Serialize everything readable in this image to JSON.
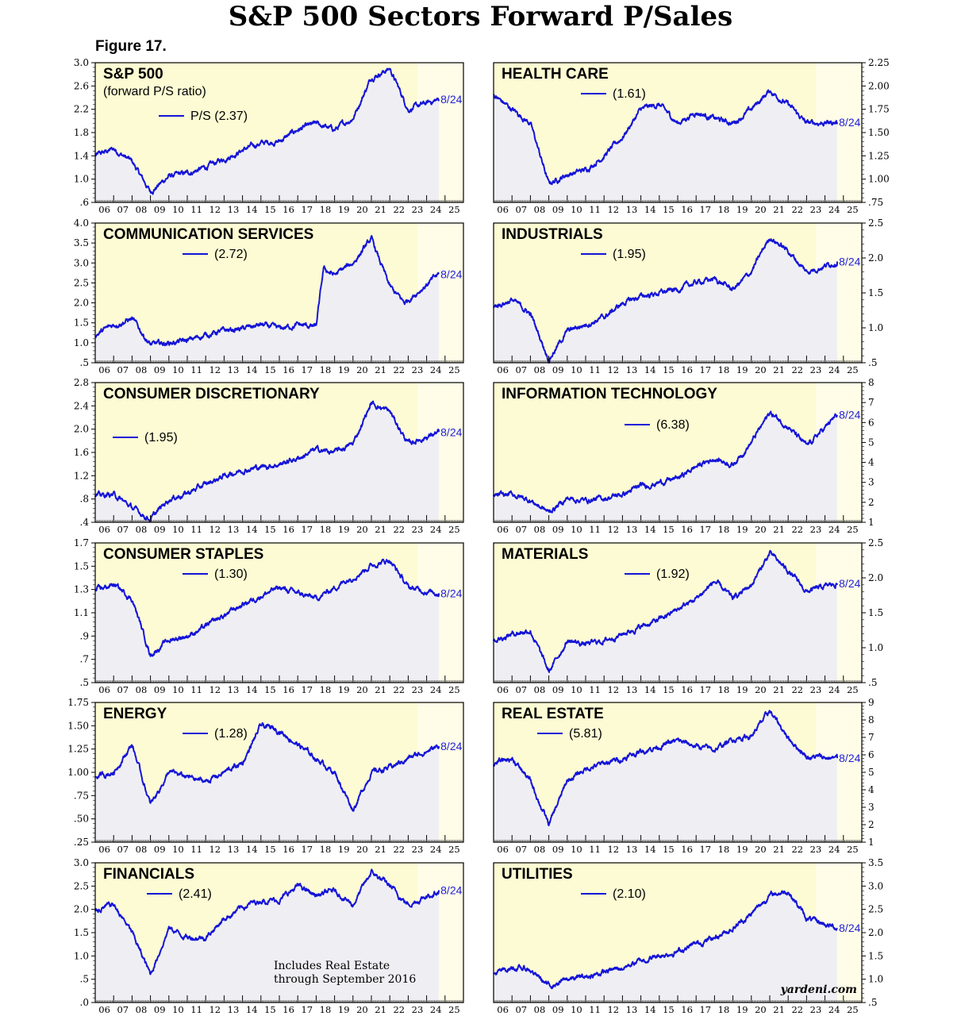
{
  "title": "S&P 500 Sectors Forward P/Sales",
  "figure_label": "Figure 17.",
  "note_lines": [
    "Includes Real Estate",
    "through September 2016"
  ],
  "source": "yardeni.com",
  "colors": {
    "line": "#1414d8",
    "panel_bg": "#fdfbd3",
    "forecast_bg": "#fffde8",
    "fill": "#efeff3",
    "endlabel": "#1f1fd6"
  },
  "x_ticks": [
    "06",
    "07",
    "08",
    "09",
    "10",
    "11",
    "12",
    "13",
    "14",
    "15",
    "16",
    "17",
    "18",
    "19",
    "20",
    "21",
    "22",
    "23",
    "24",
    "25"
  ],
  "chart_data": [
    {
      "type": "line",
      "title": "S&P 500",
      "subtitle": "(forward P/S ratio)",
      "legend": "P/S (2.37)",
      "end_label": "8/24",
      "axis_side": "left",
      "ytick_labels": [
        "3.0",
        "2.6",
        "2.2",
        "1.8",
        "1.4",
        "1.0",
        ".6"
      ],
      "ylim": [
        0.6,
        3.0
      ],
      "x": [
        2006,
        2007,
        2008,
        2009,
        2010,
        2011,
        2012,
        2013,
        2014,
        2015,
        2016,
        2017,
        2018,
        2019,
        2020,
        2021,
        2022,
        2023,
        2024.67
      ],
      "values": [
        1.4,
        1.52,
        1.3,
        0.78,
        1.05,
        1.1,
        1.2,
        1.35,
        1.5,
        1.62,
        1.65,
        1.85,
        1.95,
        1.85,
        2.05,
        2.75,
        2.9,
        2.2,
        2.37
      ]
    },
    {
      "type": "line",
      "title": "HEALTH CARE",
      "legend": "(1.61)",
      "end_label": "8/24",
      "axis_side": "right",
      "ytick_labels": [
        "2.25",
        "2.00",
        "1.75",
        "1.50",
        "1.25",
        "1.00",
        ".75"
      ],
      "ylim": [
        0.75,
        2.25
      ],
      "x": [
        2006,
        2007,
        2008,
        2009,
        2010,
        2011,
        2012,
        2013,
        2014,
        2015,
        2016,
        2017,
        2018,
        2019,
        2020,
        2021,
        2022,
        2023,
        2024.67
      ],
      "values": [
        1.9,
        1.75,
        1.6,
        0.95,
        1.05,
        1.1,
        1.25,
        1.45,
        1.75,
        1.8,
        1.6,
        1.72,
        1.65,
        1.6,
        1.75,
        1.95,
        1.8,
        1.6,
        1.61
      ]
    },
    {
      "type": "line",
      "title": "COMMUNICATION SERVICES",
      "legend": "(2.72)",
      "end_label": "8/24",
      "axis_side": "left",
      "ytick_labels": [
        "4.0",
        "3.5",
        "3.0",
        "2.5",
        "2.0",
        "1.5",
        "1.0",
        ".5"
      ],
      "ylim": [
        0.5,
        4.0
      ],
      "x": [
        2006,
        2007,
        2008,
        2009,
        2010,
        2011,
        2012,
        2013,
        2014,
        2015,
        2016,
        2017,
        2018,
        2018.4,
        2019,
        2020,
        2021,
        2022,
        2022.8,
        2024.67
      ],
      "values": [
        1.2,
        1.45,
        1.6,
        0.95,
        1.0,
        1.05,
        1.2,
        1.3,
        1.35,
        1.45,
        1.35,
        1.45,
        1.4,
        2.85,
        2.7,
        3.0,
        3.6,
        2.4,
        2.0,
        2.72
      ]
    },
    {
      "type": "line",
      "title": "INDUSTRIALS",
      "legend": "(1.95)",
      "end_label": "8/24",
      "axis_side": "right",
      "ytick_labels": [
        "2.5",
        "2.0",
        "1.5",
        "1.0",
        ".5"
      ],
      "ylim": [
        0.5,
        2.5
      ],
      "x": [
        2006,
        2007,
        2008,
        2009,
        2010,
        2011,
        2012,
        2013,
        2014,
        2015,
        2016,
        2017,
        2018,
        2019,
        2020,
        2021,
        2022,
        2023,
        2024.67
      ],
      "values": [
        1.3,
        1.4,
        1.2,
        0.55,
        0.95,
        1.05,
        1.15,
        1.35,
        1.45,
        1.5,
        1.55,
        1.65,
        1.7,
        1.55,
        1.8,
        2.3,
        2.1,
        1.8,
        1.95
      ]
    },
    {
      "type": "line",
      "title": "CONSUMER DISCRETIONARY",
      "legend": "(1.95)",
      "end_label": "8/24",
      "axis_side": "left",
      "ytick_labels": [
        "2.8",
        "2.4",
        "2.0",
        "1.6",
        "1.2",
        ".8",
        ".4"
      ],
      "ylim": [
        0.4,
        2.8
      ],
      "x": [
        2006,
        2007,
        2008,
        2009,
        2010,
        2011,
        2012,
        2013,
        2014,
        2015,
        2016,
        2017,
        2018,
        2019,
        2020,
        2021,
        2022,
        2023,
        2024.67
      ],
      "values": [
        0.85,
        0.88,
        0.65,
        0.45,
        0.8,
        0.9,
        1.05,
        1.2,
        1.3,
        1.35,
        1.4,
        1.5,
        1.65,
        1.6,
        1.75,
        2.45,
        2.3,
        1.75,
        1.95
      ]
    },
    {
      "type": "line",
      "title": "INFORMATION TECHNOLOGY",
      "legend": "(6.38)",
      "end_label": "8/24",
      "axis_side": "right",
      "ytick_labels": [
        "8",
        "7",
        "6",
        "5",
        "4",
        "3",
        "2",
        "1"
      ],
      "ylim": [
        1,
        8
      ],
      "x": [
        2006,
        2007,
        2008,
        2009,
        2010,
        2011,
        2012,
        2013,
        2014,
        2015,
        2016,
        2017,
        2018,
        2019,
        2020,
        2021,
        2022,
        2023,
        2024.67
      ],
      "values": [
        2.3,
        2.4,
        2.1,
        1.5,
        2.2,
        2.1,
        2.2,
        2.4,
        2.8,
        3.0,
        3.2,
        3.8,
        4.2,
        3.9,
        5.0,
        6.5,
        5.8,
        4.8,
        6.38
      ]
    },
    {
      "type": "line",
      "title": "CONSUMER STAPLES",
      "legend": "(1.30)",
      "end_label": "8/24",
      "axis_side": "left",
      "ytick_labels": [
        "1.7",
        "1.5",
        "1.3",
        "1.1",
        ".9",
        ".7",
        ".5"
      ],
      "ylim": [
        0.5,
        1.75
      ],
      "x": [
        2006,
        2007,
        2008,
        2009,
        2010,
        2011,
        2012,
        2013,
        2014,
        2015,
        2016,
        2017,
        2018,
        2019,
        2020,
        2021,
        2022,
        2023,
        2024.67
      ],
      "values": [
        1.32,
        1.38,
        1.25,
        0.75,
        0.88,
        0.92,
        1.0,
        1.1,
        1.2,
        1.28,
        1.35,
        1.3,
        1.25,
        1.35,
        1.45,
        1.55,
        1.6,
        1.35,
        1.3
      ]
    },
    {
      "type": "line",
      "title": "MATERIALS",
      "legend": "(1.92)",
      "end_label": "8/24",
      "axis_side": "right",
      "ytick_labels": [
        "2.5",
        "2.0",
        "1.5",
        "1.0",
        ".5"
      ],
      "ylim": [
        0.5,
        2.5
      ],
      "x": [
        2006,
        2007,
        2008,
        2009,
        2010,
        2011,
        2012,
        2013,
        2014,
        2015,
        2016,
        2017,
        2018,
        2019,
        2020,
        2021,
        2022,
        2023,
        2024.67
      ],
      "values": [
        1.1,
        1.2,
        1.25,
        0.65,
        1.1,
        1.05,
        1.1,
        1.2,
        1.3,
        1.4,
        1.55,
        1.7,
        1.95,
        1.7,
        1.9,
        2.35,
        2.1,
        1.8,
        1.92
      ]
    },
    {
      "type": "line",
      "title": "ENERGY",
      "legend": "(1.28)",
      "end_label": "8/24",
      "axis_side": "left",
      "ytick_labels": [
        "1.75",
        "1.50",
        "1.25",
        "1.00",
        ".75",
        ".50",
        ".25"
      ],
      "ylim": [
        0.25,
        1.75
      ],
      "x": [
        2006,
        2007,
        2008,
        2009,
        2010,
        2011,
        2012,
        2013,
        2014,
        2015,
        2016,
        2017,
        2018,
        2019,
        2020,
        2021,
        2022,
        2023,
        2024.67
      ],
      "values": [
        0.95,
        1.0,
        1.3,
        0.65,
        1.0,
        0.95,
        0.9,
        1.0,
        1.1,
        1.5,
        1.45,
        1.3,
        1.15,
        1.0,
        0.6,
        1.0,
        1.05,
        1.15,
        1.28
      ]
    },
    {
      "type": "line",
      "title": "REAL ESTATE",
      "legend": "(5.81)",
      "end_label": "8/24",
      "axis_side": "right",
      "ytick_labels": [
        "9",
        "8",
        "7",
        "6",
        "5",
        "4",
        "3",
        "2",
        "1"
      ],
      "ylim": [
        1,
        9
      ],
      "x": [
        2006,
        2007,
        2008,
        2009,
        2010,
        2011,
        2012,
        2013,
        2014,
        2015,
        2016,
        2017,
        2018,
        2019,
        2020,
        2021,
        2022,
        2023,
        2024.67
      ],
      "values": [
        5.5,
        5.8,
        4.5,
        2.0,
        4.5,
        5.2,
        5.5,
        5.8,
        6.2,
        6.5,
        6.8,
        6.5,
        6.3,
        6.9,
        7.1,
        8.5,
        7.0,
        5.9,
        5.81
      ]
    },
    {
      "type": "line",
      "title": "FINANCIALS",
      "legend": "(2.41)",
      "end_label": "8/24",
      "axis_side": "left",
      "ytick_labels": [
        "3.0",
        "2.5",
        "2.0",
        "1.5",
        "1.0",
        ".5",
        ".0"
      ],
      "ylim": [
        0.0,
        3.0
      ],
      "x": [
        2006,
        2007,
        2008,
        2009,
        2010,
        2011,
        2012,
        2013,
        2014,
        2015,
        2016,
        2017,
        2018,
        2019,
        2020,
        2021,
        2022,
        2023,
        2024.67
      ],
      "values": [
        2.0,
        2.1,
        1.5,
        0.6,
        1.6,
        1.4,
        1.4,
        1.8,
        2.05,
        2.2,
        2.2,
        2.5,
        2.3,
        2.4,
        2.1,
        2.8,
        2.5,
        2.1,
        2.41
      ]
    },
    {
      "type": "line",
      "title": "UTILITIES",
      "legend": "(2.10)",
      "end_label": "8/24",
      "axis_side": "right",
      "ytick_labels": [
        "3.5",
        "3.0",
        "2.5",
        "2.0",
        "1.5",
        "1.0",
        ".5"
      ],
      "ylim": [
        0.5,
        3.5
      ],
      "x": [
        2006,
        2007,
        2008,
        2009,
        2010,
        2011,
        2012,
        2013,
        2014,
        2015,
        2016,
        2017,
        2018,
        2019,
        2020,
        2021,
        2022,
        2023,
        2024.67
      ],
      "values": [
        1.1,
        1.25,
        1.2,
        0.85,
        1.0,
        1.05,
        1.15,
        1.25,
        1.4,
        1.5,
        1.6,
        1.75,
        1.9,
        2.1,
        2.4,
        2.8,
        2.9,
        2.3,
        2.1
      ]
    }
  ]
}
